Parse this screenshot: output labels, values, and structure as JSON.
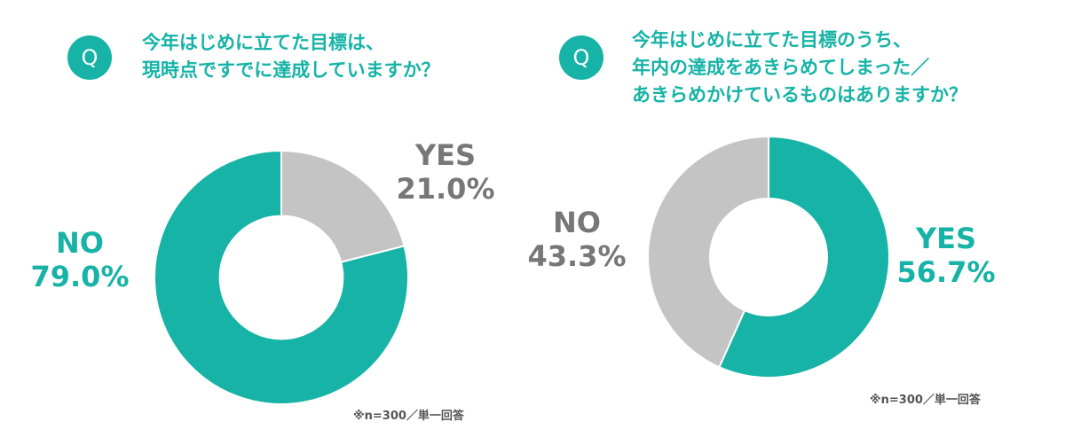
{
  "colors": {
    "accent": "#16b3a6",
    "no_gray": "#c4c4c4",
    "label_gray": "#777777"
  },
  "left": {
    "q_badge": "Q",
    "question_lines": [
      "今年はじめに立てた目標は、",
      "現時点ですでに達成していますか？"
    ],
    "note": "※n=300／単一回答"
  },
  "right": {
    "q_badge": "Q",
    "question_lines": [
      "今年はじめに立てた目標のうち、",
      "年内の達成をあきらめてしまった／",
      "あきらめかけているものはありますか？"
    ],
    "note": "※n=300／単一回答"
  },
  "chart_data": [
    {
      "type": "pie",
      "variant": "donut",
      "categories": [
        "YES",
        "NO"
      ],
      "values": [
        21.0,
        79.0
      ],
      "value_labels": [
        "21.0%",
        "79.0%"
      ],
      "colors": [
        "#c4c4c4",
        "#16b3a6"
      ],
      "label_colors": [
        "#777777",
        "#16b3a6"
      ]
    },
    {
      "type": "pie",
      "variant": "donut",
      "categories": [
        "YES",
        "NO"
      ],
      "values": [
        56.7,
        43.3
      ],
      "value_labels": [
        "56.7%",
        "43.3%"
      ],
      "colors": [
        "#16b3a6",
        "#c4c4c4"
      ],
      "label_colors": [
        "#16b3a6",
        "#777777"
      ]
    }
  ]
}
